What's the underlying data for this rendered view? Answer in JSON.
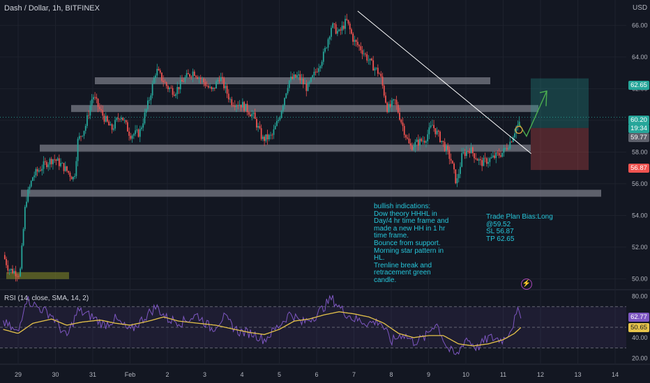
{
  "title": "Dash / Dollar, 1h, BITFINEX",
  "currency": "USD",
  "colors": {
    "up": "#26a69a",
    "down": "#ef5350",
    "rsi": "#7e57c2",
    "sma": "#e6c34a",
    "annotation": "#26c6da",
    "bg": "#131722",
    "grid": "#1e222d"
  },
  "notes": {
    "bullish": "bullish indications:\nDow theory HHHL in\nDay/4 hr time frame and\nmade a new HH in 1 hr\ntime frame.\nBounce from support.\nMorning star pattern in\nHL.\nTrenline break and\nretracement green\ncandle.",
    "trade": "Trade Plan Bias:Long\n@59.52\nSL 56.87\nTP 62.65"
  },
  "price_tags": {
    "tp": "62.65",
    "last": "60.20",
    "countdown": "19:34",
    "current": "59.77",
    "sl": "56.87"
  },
  "rsi_tags": {
    "rsi": "62.77",
    "sma": "50.65"
  },
  "chart_data": [
    {
      "type": "candlestick",
      "title": "Dash / Dollar, 1h, BITFINEX",
      "y_unit": "USD",
      "ylim": [
        49.4,
        67.6
      ],
      "y_ticks": [
        "50.00",
        "52.00",
        "54.00",
        "56.00",
        "58.00",
        "60.00",
        "62.00",
        "64.00",
        "66.00"
      ],
      "x_ticks": [
        "29",
        "30",
        "31",
        "Feb",
        "2",
        "3",
        "4",
        "5",
        "6",
        "7",
        "8",
        "9",
        "10",
        "11",
        "12",
        "13",
        "14"
      ],
      "approx_close_path": [
        [
          28.6,
          51.5
        ],
        [
          28.75,
          50.6
        ],
        [
          29.05,
          50.3
        ],
        [
          29.2,
          54.9
        ],
        [
          29.4,
          56.5
        ],
        [
          29.7,
          57.2
        ],
        [
          29.95,
          57.6
        ],
        [
          30.2,
          57.1
        ],
        [
          30.5,
          56.3
        ],
        [
          30.6,
          58.7
        ],
        [
          30.8,
          59.6
        ],
        [
          31.0,
          61.6
        ],
        [
          31.2,
          60.6
        ],
        [
          31.5,
          59.4
        ],
        [
          31.75,
          60.4
        ],
        [
          32.0,
          59.1
        ],
        [
          32.25,
          59.2
        ],
        [
          32.5,
          61.2
        ],
        [
          32.7,
          63.2
        ],
        [
          33.0,
          62.1
        ],
        [
          33.2,
          61.8
        ],
        [
          33.45,
          62.6
        ],
        [
          33.7,
          63.1
        ],
        [
          33.95,
          62.5
        ],
        [
          34.2,
          61.8
        ],
        [
          34.4,
          62.8
        ],
        [
          34.7,
          61.2
        ],
        [
          35.0,
          61.0
        ],
        [
          35.3,
          60.3
        ],
        [
          35.55,
          58.8
        ],
        [
          35.8,
          59.0
        ],
        [
          36.0,
          60.2
        ],
        [
          36.25,
          62.5
        ],
        [
          36.5,
          62.8
        ],
        [
          36.75,
          62.0
        ],
        [
          37.0,
          63.2
        ],
        [
          37.2,
          64.2
        ],
        [
          37.4,
          66.0
        ],
        [
          37.6,
          65.5
        ],
        [
          37.8,
          66.3
        ],
        [
          38.0,
          65.0
        ],
        [
          38.2,
          64.5
        ],
        [
          38.45,
          63.6
        ],
        [
          38.7,
          62.9
        ],
        [
          38.9,
          60.7
        ],
        [
          39.1,
          61.2
        ],
        [
          39.3,
          59.7
        ],
        [
          39.5,
          58.3
        ],
        [
          39.7,
          58.6
        ],
        [
          39.9,
          58.8
        ],
        [
          40.1,
          59.7
        ],
        [
          40.4,
          58.5
        ],
        [
          40.6,
          57.5
        ],
        [
          40.75,
          56.0
        ],
        [
          40.9,
          57.8
        ],
        [
          41.1,
          58.2
        ],
        [
          41.4,
          57.3
        ],
        [
          41.7,
          57.6
        ],
        [
          42.0,
          58.0
        ],
        [
          42.2,
          58.7
        ],
        [
          42.35,
          59.6
        ],
        [
          42.45,
          59.77
        ]
      ],
      "levels": [
        {
          "label": "support",
          "y": 55.4
        },
        {
          "label": "support",
          "y": 58.25
        },
        {
          "label": "resistance",
          "y": 60.75
        },
        {
          "label": "resistance",
          "y": 62.5
        },
        {
          "label": "demand zone",
          "y": 50.2
        }
      ],
      "trendline": [
        [
          38.1,
          66.9
        ],
        [
          42.75,
          57.9
        ]
      ],
      "trade": {
        "bias": "Long",
        "entry": 59.52,
        "stop_loss": 56.87,
        "take_profit": 62.65
      },
      "series": [
        {
          "values_ref": "approx_close_path"
        }
      ]
    },
    {
      "type": "line",
      "title": "RSI (14, close, SMA, 14, 2)",
      "ylim": [
        15,
        85
      ],
      "y_ticks": [
        "20.00",
        "40.00",
        "80.00"
      ],
      "levels": [
        70,
        50,
        30
      ],
      "series": [
        {
          "name": "RSI",
          "values": [
            [
              28.6,
              55
            ],
            [
              29.0,
              44
            ],
            [
              29.2,
              78
            ],
            [
              29.5,
              70
            ],
            [
              29.9,
              62
            ],
            [
              30.3,
              40
            ],
            [
              30.6,
              66
            ],
            [
              31.0,
              60
            ],
            [
              31.3,
              52
            ],
            [
              31.6,
              58
            ],
            [
              32.0,
              46
            ],
            [
              32.4,
              60
            ],
            [
              32.7,
              70
            ],
            [
              33.0,
              58
            ],
            [
              33.4,
              55
            ],
            [
              33.8,
              62
            ],
            [
              34.2,
              48
            ],
            [
              34.5,
              60
            ],
            [
              34.9,
              46
            ],
            [
              35.3,
              44
            ],
            [
              35.6,
              38
            ],
            [
              36.0,
              52
            ],
            [
              36.3,
              64
            ],
            [
              36.6,
              54
            ],
            [
              37.0,
              62
            ],
            [
              37.4,
              78
            ],
            [
              37.7,
              66
            ],
            [
              38.0,
              58
            ],
            [
              38.4,
              54
            ],
            [
              38.7,
              56
            ],
            [
              39.0,
              36
            ],
            [
              39.3,
              44
            ],
            [
              39.6,
              36
            ],
            [
              39.9,
              40
            ],
            [
              40.2,
              55
            ],
            [
              40.5,
              30
            ],
            [
              40.75,
              22
            ],
            [
              41.0,
              40
            ],
            [
              41.3,
              30
            ],
            [
              41.6,
              40
            ],
            [
              42.0,
              38
            ],
            [
              42.2,
              48
            ],
            [
              42.4,
              65
            ],
            [
              42.5,
              62.77
            ]
          ]
        },
        {
          "name": "SMA",
          "values": [
            [
              28.6,
              48
            ],
            [
              29.0,
              44
            ],
            [
              29.4,
              54
            ],
            [
              29.9,
              58
            ],
            [
              30.3,
              52
            ],
            [
              30.7,
              55
            ],
            [
              31.2,
              57
            ],
            [
              31.6,
              54
            ],
            [
              32.0,
              52
            ],
            [
              32.5,
              56
            ],
            [
              32.9,
              60
            ],
            [
              33.3,
              56
            ],
            [
              33.8,
              54
            ],
            [
              34.3,
              52
            ],
            [
              34.8,
              48
            ],
            [
              35.2,
              45
            ],
            [
              35.6,
              43
            ],
            [
              36.0,
              48
            ],
            [
              36.4,
              56
            ],
            [
              36.8,
              58
            ],
            [
              37.2,
              62
            ],
            [
              37.6,
              65
            ],
            [
              38.0,
              63
            ],
            [
              38.4,
              60
            ],
            [
              38.8,
              54
            ],
            [
              39.2,
              44
            ],
            [
              39.6,
              40
            ],
            [
              40.0,
              42
            ],
            [
              40.4,
              42
            ],
            [
              40.8,
              34
            ],
            [
              41.2,
              32
            ],
            [
              41.6,
              34
            ],
            [
              42.0,
              38
            ],
            [
              42.3,
              44
            ],
            [
              42.5,
              50.65
            ]
          ]
        }
      ]
    }
  ]
}
